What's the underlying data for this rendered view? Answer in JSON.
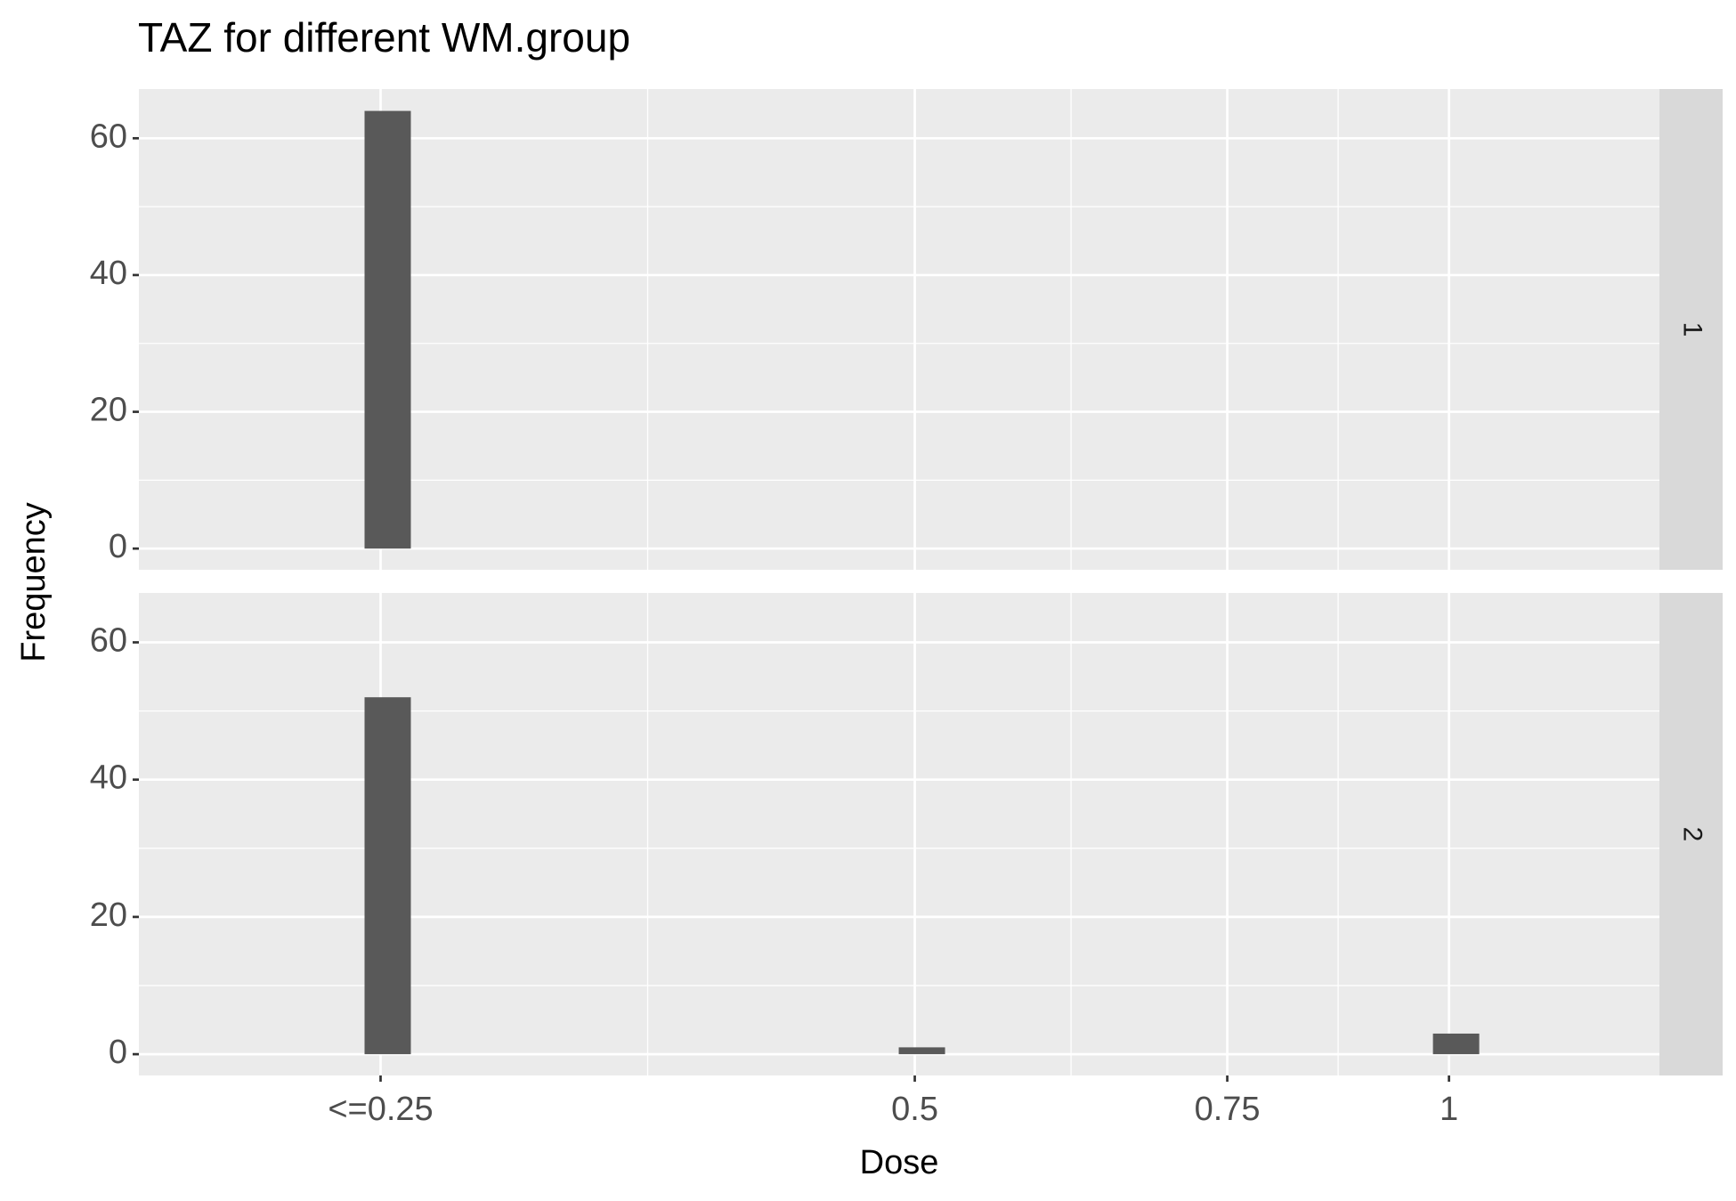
{
  "chart_data": [
    {
      "type": "bar",
      "title": "TAZ for different WM.group",
      "x_label": "Dose",
      "y_label": "Frequency",
      "panel": "1",
      "x": [
        0.25
      ],
      "values": [
        64
      ],
      "color": "#595959",
      "xscale": "log",
      "xlim": [
        0.1827,
        1.314
      ],
      "xticks": [
        0.25,
        0.5,
        0.75,
        1
      ],
      "ylim": [
        -3.1,
        67.2
      ],
      "yticks": [
        0,
        20,
        40,
        60
      ],
      "grid": true
    },
    {
      "type": "bar",
      "panel": "2",
      "x": [
        0.25,
        0.5,
        1
      ],
      "values": [
        52,
        1,
        3
      ],
      "color": "#595959",
      "xscale": "log",
      "xlim": [
        0.1827,
        1.314
      ],
      "xticks": [
        {
          "value": 0.25,
          "label": "<=0.25"
        },
        0.5,
        0.75,
        1
      ],
      "ylim": [
        -3.1,
        67.2
      ],
      "yticks": [
        0,
        20,
        40,
        60
      ],
      "grid": true
    }
  ]
}
